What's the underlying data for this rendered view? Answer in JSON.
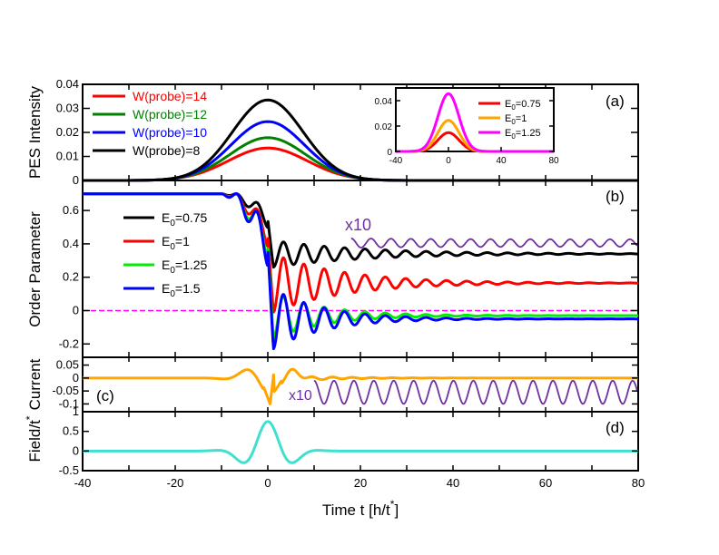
{
  "chart_data": [
    {
      "id": "a",
      "type": "line",
      "panel_label": "(a)",
      "ylabel": "PES Intensity",
      "xlim": [
        -40,
        80
      ],
      "ylim": [
        0,
        0.04
      ],
      "yticks": [
        "0",
        "0.01",
        "0.02",
        "0.03",
        "0.04"
      ],
      "legend_position": "top-left",
      "series": [
        {
          "name": "W(probe)=14",
          "color": "#ff0000",
          "peak": 0.0135,
          "center": 0,
          "width": 8.5
        },
        {
          "name": "W(probe)=12",
          "color": "#008000",
          "peak": 0.0178,
          "center": 0,
          "width": 8.2
        },
        {
          "name": "W(probe)=10",
          "color": "#0000ff",
          "peak": 0.0245,
          "center": 0,
          "width": 7.9
        },
        {
          "name": "W(probe)=8",
          "color": "#000000",
          "peak": 0.0335,
          "center": 0,
          "width": 7.6
        }
      ]
    },
    {
      "id": "a-inset",
      "type": "line",
      "xlim": [
        -40,
        80
      ],
      "ylim": [
        0,
        0.05
      ],
      "xticks": [
        "-40",
        "0",
        "40",
        "80"
      ],
      "yticks": [
        "0",
        "0.02",
        "0.04"
      ],
      "legend_position": "top-right",
      "series": [
        {
          "name_base": "E",
          "name_sub": "0",
          "name_suffix": "=0.75",
          "color": "#ff0000",
          "peak": 0.0148,
          "center": 0,
          "width": 8
        },
        {
          "name_base": "E",
          "name_sub": "0",
          "name_suffix": "=1",
          "color": "#ffa500",
          "peak": 0.0245,
          "center": 0,
          "width": 8
        },
        {
          "name_base": "E",
          "name_sub": "0",
          "name_suffix": "=1.25",
          "color": "#ff00ff",
          "peak": 0.0455,
          "center": 0,
          "width": 8
        }
      ]
    },
    {
      "id": "b",
      "type": "line",
      "panel_label": "(b)",
      "ylabel": "Order Parameter",
      "xlim": [
        -40,
        80
      ],
      "ylim": [
        -0.28,
        0.78
      ],
      "yticks": [
        "-0.2",
        "0",
        "0.2",
        "0.4",
        "0.6"
      ],
      "legend_position": "middle-left",
      "annotation": "x10",
      "initial_value": 0.7,
      "series": [
        {
          "name_base": "E",
          "name_sub": "0",
          "name_suffix": "=0.75",
          "color": "#000000",
          "final": 0.34,
          "dip": 0.26,
          "osc": 0.045,
          "decay": 9
        },
        {
          "name_base": "E",
          "name_sub": "0",
          "name_suffix": "=1",
          "color": "#ff0000",
          "final": 0.165,
          "dip": -0.01,
          "osc": 0.07,
          "decay": 7
        },
        {
          "name_base": "E",
          "name_sub": "0",
          "name_suffix": "=1.25",
          "color": "#00ee00",
          "final": -0.03,
          "dip": -0.17,
          "osc": 0.08,
          "decay": 5
        },
        {
          "name_base": "E",
          "name_sub": "0",
          "name_suffix": "=1.5",
          "color": "#0000ff",
          "final": -0.05,
          "dip": -0.23,
          "osc": 0.11,
          "decay": 5
        }
      ],
      "magnified_series": {
        "color": "#7030a0",
        "x_start": 18,
        "x_end": 80,
        "base": 0.405,
        "amplitude": 0.028,
        "period": 4.3
      },
      "reference_line": {
        "color": "#ff00ff",
        "value": 0
      }
    },
    {
      "id": "c",
      "type": "line",
      "panel_label": "(c)",
      "ylabel": "Current",
      "xlim": [
        -40,
        80
      ],
      "ylim": [
        -0.13,
        0.08
      ],
      "yticks": [
        "-0.1",
        "-0.05",
        "0",
        "0.05"
      ],
      "annotation": "x10",
      "series": [
        {
          "name": "current",
          "color": "#ffa500"
        },
        {
          "name": "current x10",
          "color": "#7030a0",
          "x_start": 10,
          "x_end": 80,
          "amplitude": 0.045,
          "base": -0.055,
          "period": 4.3
        }
      ]
    },
    {
      "id": "d",
      "type": "line",
      "panel_label": "(d)",
      "ylabel": "Field/t",
      "ylabel_sup": "*",
      "xlabel_base": "Time t [h/t",
      "xlabel_sup": "*",
      "xlabel_close": "]",
      "xlim": [
        -40,
        80
      ],
      "ylim": [
        -0.5,
        1
      ],
      "xticks": [
        "-40",
        "-20",
        "0",
        "20",
        "40",
        "60",
        "80"
      ],
      "yticks": [
        "-0.5",
        "0",
        "0.5",
        "1"
      ],
      "series": [
        {
          "name": "field",
          "color": "#40e0d0",
          "amplitude": 0.75,
          "width": 4.2,
          "frequency": 0.5
        }
      ]
    }
  ]
}
